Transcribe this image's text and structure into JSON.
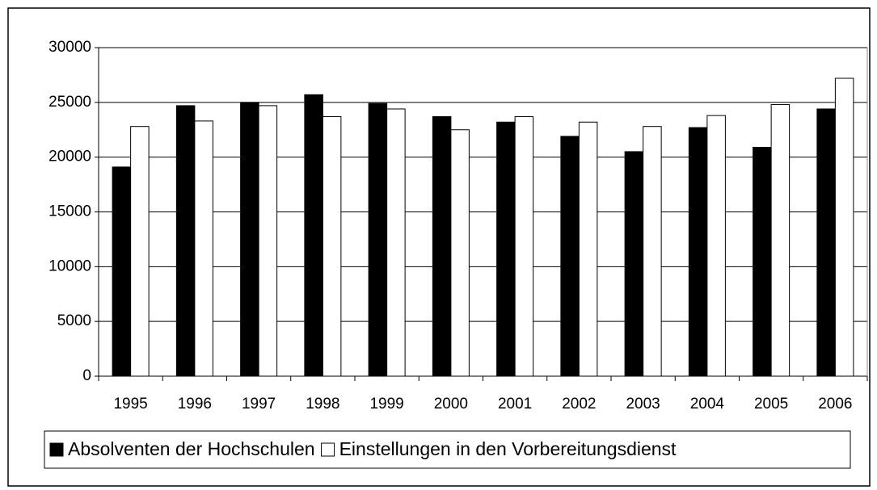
{
  "chart_data": {
    "type": "bar",
    "categories": [
      "1995",
      "1996",
      "1997",
      "1998",
      "1999",
      "2000",
      "2001",
      "2002",
      "2003",
      "2004",
      "2005",
      "2006"
    ],
    "series": [
      {
        "name": "Absolventen der Hochschulen",
        "color": "#000000",
        "values": [
          19100,
          24700,
          25000,
          25700,
          24900,
          23700,
          23200,
          21900,
          20500,
          22700,
          20900,
          24400
        ]
      },
      {
        "name": "Einstellungen in den Vorbereitungsdienst",
        "color": "#ffffff",
        "values": [
          22800,
          23300,
          24700,
          23700,
          24400,
          22500,
          23700,
          23200,
          22800,
          23800,
          24800,
          27200
        ]
      }
    ],
    "ylim": [
      0,
      30000
    ],
    "yticks": [
      0,
      5000,
      10000,
      15000,
      20000,
      25000,
      30000
    ],
    "grid": true,
    "legend": "bottom"
  }
}
